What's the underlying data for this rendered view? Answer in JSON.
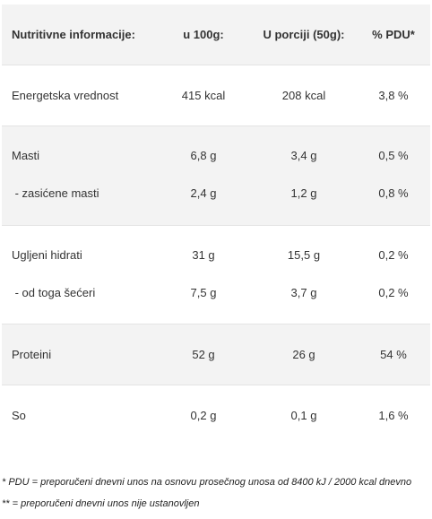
{
  "table": {
    "headers": [
      "Nutritivne informacije:",
      "u 100g:",
      "U porciji (50g):",
      "% PDU*"
    ],
    "rows": [
      {
        "label": "Energetska vrednost",
        "per100": "415 kcal",
        "portion": "208 kcal",
        "pdu": "3,8 %"
      },
      {
        "label": "Masti",
        "per100": "6,8 g",
        "portion": "3,4 g",
        "pdu": "0,5 %"
      },
      {
        "label": " - zasićene masti",
        "per100": "2,4 g",
        "portion": "1,2 g",
        "pdu": "0,8 %"
      },
      {
        "label": "Ugljeni hidrati",
        "per100": "31 g",
        "portion": "15,5 g",
        "pdu": "0,2 %"
      },
      {
        "label": " - od toga šećeri",
        "per100": "7,5 g",
        "portion": "3,7 g",
        "pdu": "0,2 %"
      },
      {
        "label": "Proteini",
        "per100": "52 g",
        "portion": "26 g",
        "pdu": "54 %"
      },
      {
        "label": "So",
        "per100": "0,2 g",
        "portion": "0,1 g",
        "pdu": "1,6 %"
      }
    ]
  },
  "footnotes": [
    "* PDU = preporučeni dnevni unos na osnovu prosečnog unosa od 8400 kJ / 2000 kcal dnevno",
    "** = preporučeni dnevni unos nije ustanovljen"
  ]
}
